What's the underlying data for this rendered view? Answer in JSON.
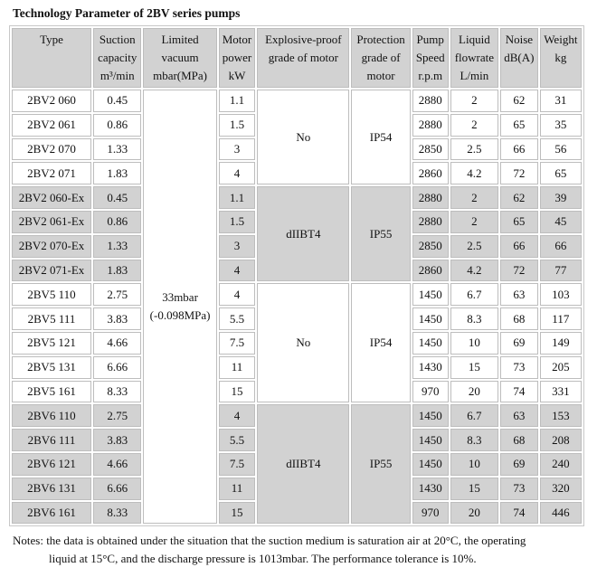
{
  "title": "Technology Parameter of 2BV series pumps",
  "headers": [
    [
      "Type"
    ],
    [
      "Suction",
      "capacity",
      "m³/min"
    ],
    [
      "Limited",
      "vacuum",
      "mbar(MPa)"
    ],
    [
      "Motor",
      "power",
      "kW"
    ],
    [
      "Explosive-proof",
      "grade of motor"
    ],
    [
      "Protection",
      "grade of",
      "motor"
    ],
    [
      "Pump",
      "Speed",
      "r.p.m"
    ],
    [
      "Liquid",
      "flowrate",
      "L/min"
    ],
    [
      "Noise",
      "dB(A)"
    ],
    [
      "Weight",
      "kg"
    ]
  ],
  "limited_vacuum": [
    "33mbar",
    "(-0.098MPa)"
  ],
  "groups": [
    {
      "shaded": false,
      "explosive": "No",
      "protection": "IP54",
      "rows": [
        [
          "2BV2 060",
          "0.45",
          "1.1",
          "2880",
          "2",
          "62",
          "31"
        ],
        [
          "2BV2 061",
          "0.86",
          "1.5",
          "2880",
          "2",
          "65",
          "35"
        ],
        [
          "2BV2 070",
          "1.33",
          "3",
          "2850",
          "2.5",
          "66",
          "56"
        ],
        [
          "2BV2 071",
          "1.83",
          "4",
          "2860",
          "4.2",
          "72",
          "65"
        ]
      ]
    },
    {
      "shaded": true,
      "explosive": "dIIBT4",
      "protection": "IP55",
      "rows": [
        [
          "2BV2 060-Ex",
          "0.45",
          "1.1",
          "2880",
          "2",
          "62",
          "39"
        ],
        [
          "2BV2 061-Ex",
          "0.86",
          "1.5",
          "2880",
          "2",
          "65",
          "45"
        ],
        [
          "2BV2 070-Ex",
          "1.33",
          "3",
          "2850",
          "2.5",
          "66",
          "66"
        ],
        [
          "2BV2 071-Ex",
          "1.83",
          "4",
          "2860",
          "4.2",
          "72",
          "77"
        ]
      ]
    },
    {
      "shaded": false,
      "explosive": "No",
      "protection": "IP54",
      "rows": [
        [
          "2BV5 110",
          "2.75",
          "4",
          "1450",
          "6.7",
          "63",
          "103"
        ],
        [
          "2BV5 111",
          "3.83",
          "5.5",
          "1450",
          "8.3",
          "68",
          "117"
        ],
        [
          "2BV5 121",
          "4.66",
          "7.5",
          "1450",
          "10",
          "69",
          "149"
        ],
        [
          "2BV5 131",
          "6.66",
          "11",
          "1430",
          "15",
          "73",
          "205"
        ],
        [
          "2BV5 161",
          "8.33",
          "15",
          "970",
          "20",
          "74",
          "331"
        ]
      ]
    },
    {
      "shaded": true,
      "explosive": "dIIBT4",
      "protection": "IP55",
      "rows": [
        [
          "2BV6 110",
          "2.75",
          "4",
          "1450",
          "6.7",
          "63",
          "153"
        ],
        [
          "2BV6 111",
          "3.83",
          "5.5",
          "1450",
          "8.3",
          "68",
          "208"
        ],
        [
          "2BV6 121",
          "4.66",
          "7.5",
          "1450",
          "10",
          "69",
          "240"
        ],
        [
          "2BV6 131",
          "6.66",
          "11",
          "1430",
          "15",
          "73",
          "320"
        ],
        [
          "2BV6 161",
          "8.33",
          "15",
          "970",
          "20",
          "74",
          "446"
        ]
      ]
    }
  ],
  "notes": [
    "Notes: the data is obtained under the situation that the suction medium is saturation air at 20°C, the operating",
    "liquid at 15°C, and the discharge pressure is 1013mbar. The performance tolerance is 10%."
  ]
}
